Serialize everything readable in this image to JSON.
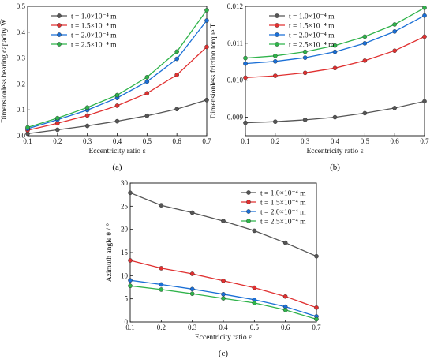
{
  "legend_labels": [
    "t = 1.0×10⁻⁴ m",
    "t = 1.5×10⁻⁴ m",
    "t = 2.0×10⁻⁴ m",
    "t = 2.5×10⁻⁴ m"
  ],
  "series_colors": [
    "#555555",
    "#e03030",
    "#1a6fd6",
    "#2fb34a"
  ],
  "chart_data": [
    {
      "type": "line",
      "panel_label": "(a)",
      "xlabel": "Eccentricity ratio ε",
      "ylabel": "Dimensionless bearing capacity W̅",
      "xlim": [
        0.1,
        0.7
      ],
      "ylim": [
        0.0,
        0.5
      ],
      "xticks": [
        0.1,
        0.2,
        0.3,
        0.4,
        0.5,
        0.6,
        0.7
      ],
      "yticks": [
        0.0,
        0.1,
        0.2,
        0.3,
        0.4,
        0.5
      ],
      "x": [
        0.1,
        0.2,
        0.3,
        0.4,
        0.5,
        0.6,
        0.7
      ],
      "legend_position": "top-left",
      "series": [
        {
          "name": "t = 1.0×10⁻⁴ m",
          "values": [
            0.008,
            0.023,
            0.038,
            0.056,
            0.077,
            0.103,
            0.138
          ]
        },
        {
          "name": "t = 1.5×10⁻⁴ m",
          "values": [
            0.021,
            0.048,
            0.078,
            0.116,
            0.164,
            0.235,
            0.343
          ]
        },
        {
          "name": "t = 2.0×10⁻⁴ m",
          "values": [
            0.027,
            0.062,
            0.099,
            0.146,
            0.209,
            0.297,
            0.445
          ]
        },
        {
          "name": "t = 2.5×10⁻⁴ m",
          "values": [
            0.032,
            0.068,
            0.109,
            0.157,
            0.226,
            0.325,
            0.485
          ]
        }
      ]
    },
    {
      "type": "line",
      "panel_label": "(b)",
      "xlabel": "Eccentricity ratio ε",
      "ylabel": "Dimensionless friction torque T",
      "xlim": [
        0.1,
        0.7
      ],
      "ylim": [
        0.0085,
        0.012
      ],
      "xticks": [
        0.1,
        0.2,
        0.3,
        0.4,
        0.5,
        0.6,
        0.7
      ],
      "yticks": [
        0.009,
        0.01,
        0.011,
        0.012
      ],
      "ytick_labels": [
        "0.009",
        "0.010",
        "0.011",
        "0.012"
      ],
      "x": [
        0.1,
        0.2,
        0.3,
        0.4,
        0.5,
        0.6,
        0.7
      ],
      "legend_position": "top-left",
      "series": [
        {
          "name": "t = 1.0×10⁻⁴ m",
          "values": [
            0.00885,
            0.00888,
            0.00893,
            0.009,
            0.00911,
            0.00925,
            0.00943
          ]
        },
        {
          "name": "t = 1.5×10⁻⁴ m",
          "values": [
            0.01007,
            0.01012,
            0.0102,
            0.01033,
            0.01053,
            0.0108,
            0.01118
          ]
        },
        {
          "name": "t = 2.0×10⁻⁴ m",
          "values": [
            0.01045,
            0.01051,
            0.01061,
            0.01077,
            0.011,
            0.01132,
            0.01175
          ]
        },
        {
          "name": "t = 2.5×10⁻⁴ m",
          "values": [
            0.0106,
            0.01066,
            0.01077,
            0.01094,
            0.01118,
            0.01151,
            0.01196
          ]
        }
      ]
    },
    {
      "type": "line",
      "panel_label": "(c)",
      "xlabel": "Eccentricity ratio ε",
      "ylabel": "Azimuth angle θ / °",
      "xlim": [
        0.1,
        0.7
      ],
      "ylim": [
        0,
        30
      ],
      "xticks": [
        0.1,
        0.2,
        0.3,
        0.4,
        0.5,
        0.6,
        0.7
      ],
      "yticks": [
        0,
        5,
        10,
        15,
        20,
        25,
        30
      ],
      "x": [
        0.1,
        0.2,
        0.3,
        0.4,
        0.5,
        0.6,
        0.7
      ],
      "legend_position": "top-right",
      "series": [
        {
          "name": "t = 1.0×10⁻⁴ m",
          "values": [
            27.9,
            25.2,
            23.6,
            21.8,
            19.7,
            17.1,
            14.2
          ]
        },
        {
          "name": "t = 1.5×10⁻⁴ m",
          "values": [
            13.3,
            11.6,
            10.4,
            8.9,
            7.4,
            5.5,
            3.1
          ]
        },
        {
          "name": "t = 2.0×10⁻⁴ m",
          "values": [
            9.0,
            8.1,
            7.1,
            6.0,
            4.8,
            3.3,
            1.2
          ]
        },
        {
          "name": "t = 2.5×10⁻⁴ m",
          "values": [
            7.8,
            7.0,
            6.1,
            5.1,
            4.1,
            2.6,
            0.6
          ]
        }
      ]
    }
  ]
}
